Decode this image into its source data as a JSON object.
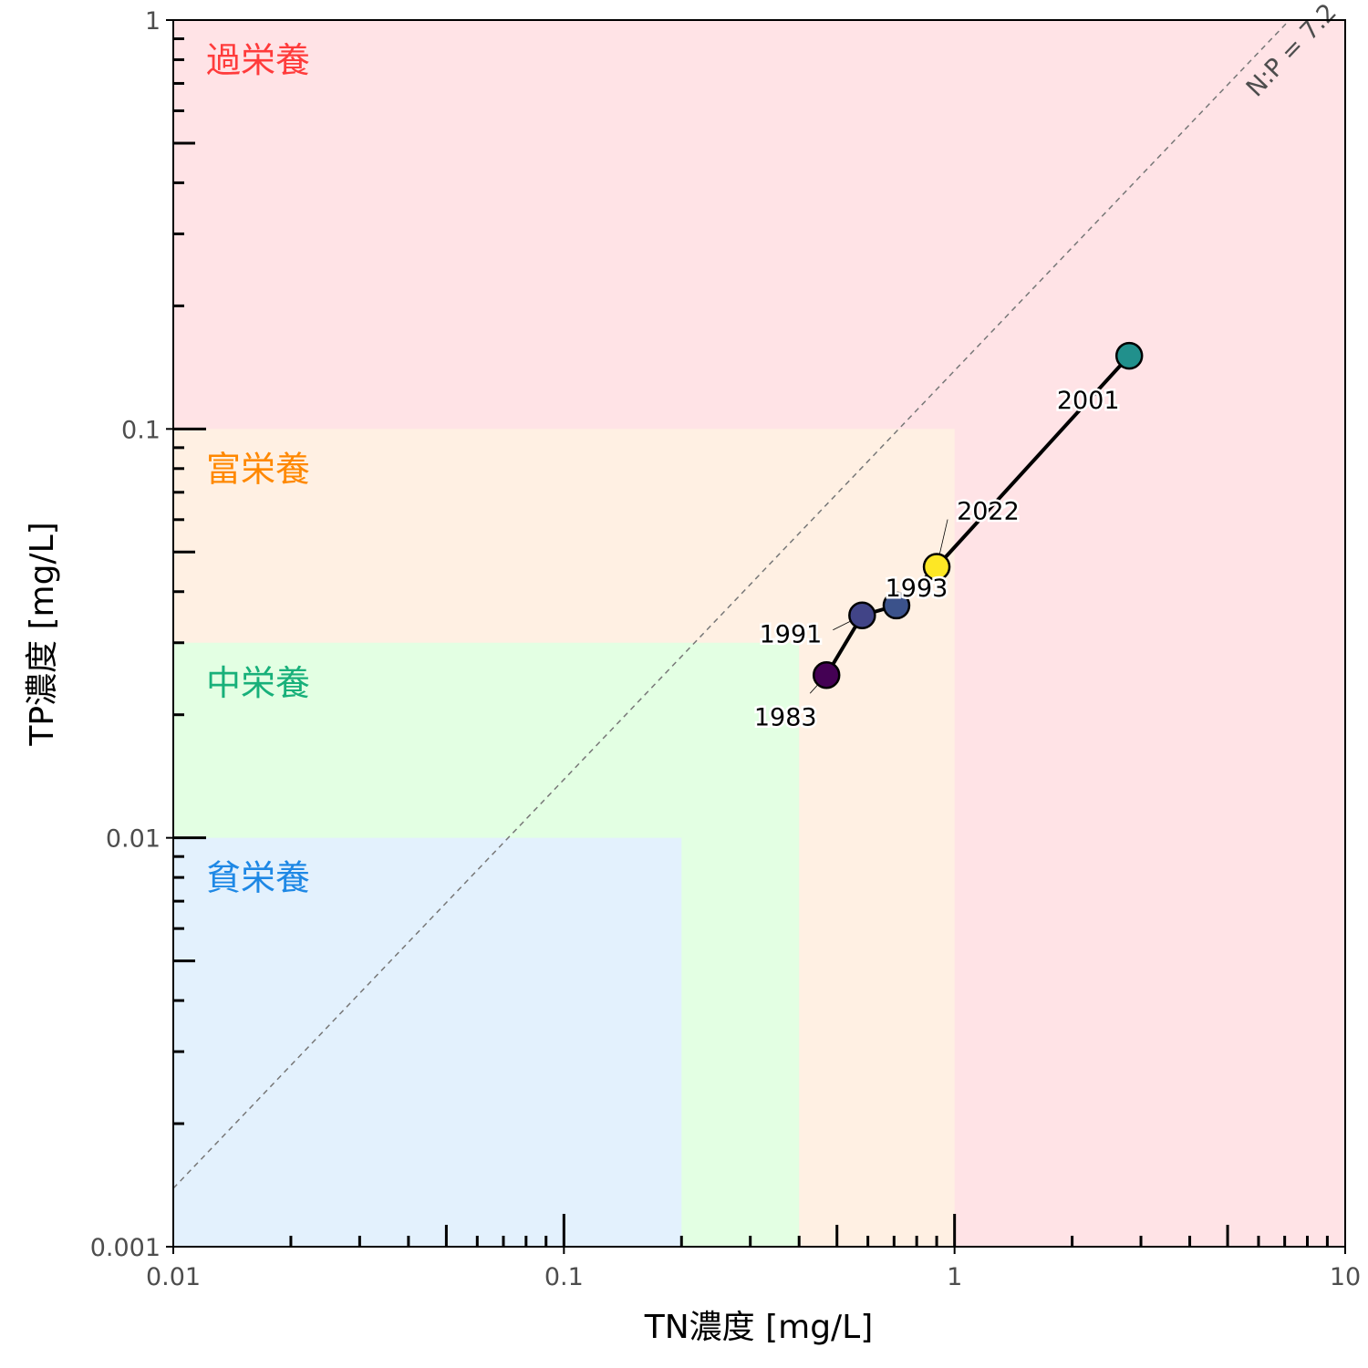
{
  "chart_data": {
    "type": "scatter",
    "xlabel": "TN濃度 [mg/L]",
    "ylabel": "TP濃度 [mg/L]",
    "x_scale": "log10",
    "y_scale": "log10",
    "xlim": [
      0.01,
      10
    ],
    "ylim": [
      0.001,
      1
    ],
    "x_tick_labels": [
      {
        "value": 0.01,
        "label": "0.01"
      },
      {
        "value": 0.1,
        "label": "0.1"
      },
      {
        "value": 1,
        "label": "1"
      },
      {
        "value": 10,
        "label": "10"
      }
    ],
    "y_tick_labels": [
      {
        "value": 0.001,
        "label": "0.001"
      },
      {
        "value": 0.01,
        "label": "0.01"
      },
      {
        "value": 0.1,
        "label": "0.1"
      },
      {
        "value": 1,
        "label": "1"
      }
    ],
    "zones": [
      {
        "name": "過栄養",
        "tn_max": 10,
        "tp_max": 1,
        "fill": "#ffe3e6",
        "label_color": "#ff3b3b"
      },
      {
        "name": "富栄養",
        "tn_max": 1,
        "tp_max": 0.1,
        "fill": "#fff0e3",
        "label_color": "#ff8800"
      },
      {
        "name": "中栄養",
        "tn_max": 0.4,
        "tp_max": 0.03,
        "fill": "#e3ffe3",
        "label_color": "#18b07a"
      },
      {
        "name": "貧栄養",
        "tn_max": 0.2,
        "tp_max": 0.01,
        "fill": "#e3f1fd",
        "label_color": "#1e88e5"
      }
    ],
    "ratio_line": {
      "label": "N:P = 7.2",
      "ratio": 7.2,
      "color": "#777777",
      "style": "dashed"
    },
    "points": [
      {
        "year": "1983",
        "tn": 0.47,
        "tp": 0.025,
        "color": "#440154"
      },
      {
        "year": "1991",
        "tn": 0.58,
        "tp": 0.035,
        "color": "#414487"
      },
      {
        "year": "1993",
        "tn": 0.71,
        "tp": 0.037,
        "color": "#3b528b"
      },
      {
        "year": "2001",
        "tn": 2.8,
        "tp": 0.151,
        "color": "#21908c"
      },
      {
        "year": "2022",
        "tn": 0.9,
        "tp": 0.046,
        "color": "#fde725"
      }
    ],
    "path_order": [
      "1983",
      "1991",
      "1993",
      "2022",
      "2001"
    ]
  }
}
